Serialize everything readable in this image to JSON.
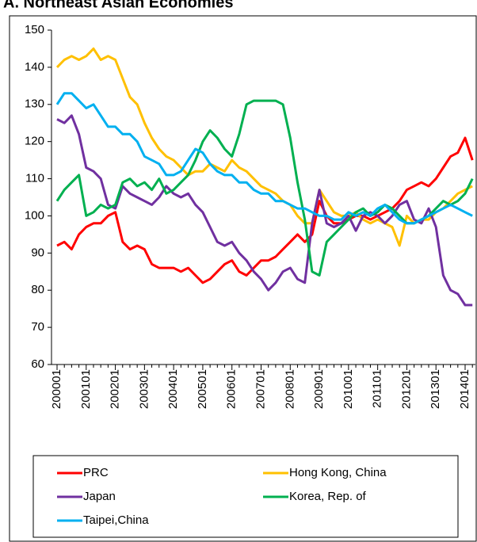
{
  "chart_data": {
    "type": "line",
    "title": "A. Northeast Asian Economies",
    "categories": [
      "200001",
      null,
      null,
      null,
      "200101",
      null,
      null,
      null,
      "200201",
      null,
      null,
      null,
      "200301",
      null,
      null,
      null,
      "200401",
      null,
      null,
      null,
      "200501",
      null,
      null,
      null,
      "200601",
      null,
      null,
      null,
      "200701",
      null,
      null,
      null,
      "200801",
      null,
      null,
      null,
      "200901",
      null,
      null,
      null,
      "201001",
      null,
      null,
      null,
      "201101",
      null,
      null,
      null,
      "201201",
      null,
      null,
      null,
      "201301",
      null,
      null,
      null,
      "201401",
      null
    ],
    "series": [
      {
        "name": "PRC",
        "color": "#ff0000",
        "values": [
          92,
          93,
          91,
          95,
          97,
          98,
          98,
          100,
          101,
          93,
          91,
          92,
          91,
          87,
          86,
          86,
          86,
          85,
          86,
          84,
          82,
          83,
          85,
          87,
          88,
          85,
          84,
          86,
          88,
          88,
          89,
          91,
          93,
          95,
          93,
          95,
          104,
          100,
          98,
          98,
          99,
          100,
          100,
          99,
          100,
          101,
          102,
          104,
          107,
          108,
          109,
          108,
          110,
          113,
          116,
          117,
          121,
          115
        ]
      },
      {
        "name": "Hong Kong, China",
        "color": "#ffc000",
        "values": [
          140,
          142,
          143,
          142,
          143,
          145,
          142,
          143,
          142,
          137,
          132,
          130,
          125,
          121,
          118,
          116,
          115,
          113,
          111,
          112,
          112,
          114,
          113,
          112,
          115,
          113,
          112,
          110,
          108,
          107,
          106,
          104,
          103,
          100,
          98,
          98,
          107,
          104,
          101,
          100,
          100,
          101,
          99,
          98,
          99,
          98,
          97,
          92,
          100,
          98,
          99,
          99,
          101,
          102,
          104,
          106,
          107,
          108
        ]
      },
      {
        "name": "Japan",
        "color": "#7030a0",
        "values": [
          126,
          125,
          127,
          122,
          113,
          112,
          110,
          103,
          102,
          108,
          106,
          105,
          104,
          103,
          105,
          108,
          106,
          105,
          106,
          103,
          101,
          97,
          93,
          92,
          93,
          90,
          88,
          85,
          83,
          80,
          82,
          85,
          86,
          83,
          82,
          98,
          107,
          98,
          97,
          98,
          100,
          96,
          100,
          101,
          100,
          98,
          100,
          103,
          104,
          99,
          98,
          102,
          97,
          84,
          80,
          79,
          76,
          76
        ]
      },
      {
        "name": "Korea, Rep. of",
        "color": "#00b050",
        "values": [
          104,
          107,
          109,
          111,
          100,
          101,
          103,
          102,
          103,
          109,
          110,
          108,
          109,
          107,
          110,
          106,
          107,
          109,
          111,
          115,
          120,
          123,
          121,
          118,
          116,
          122,
          130,
          131,
          131,
          131,
          131,
          130,
          121,
          109,
          99,
          85,
          84,
          93,
          95,
          97,
          99,
          101,
          102,
          100,
          101,
          103,
          102,
          100,
          98,
          98,
          99,
          100,
          102,
          104,
          103,
          104,
          106,
          110
        ]
      },
      {
        "name": "Taipei,China",
        "color": "#00b0f0",
        "values": [
          130,
          133,
          133,
          131,
          129,
          130,
          127,
          124,
          124,
          122,
          122,
          120,
          116,
          115,
          114,
          111,
          111,
          112,
          115,
          118,
          117,
          114,
          112,
          111,
          111,
          109,
          109,
          107,
          106,
          106,
          104,
          104,
          103,
          102,
          102,
          101,
          100,
          100,
          99,
          99,
          101,
          100,
          101,
          100,
          102,
          103,
          101,
          99,
          98,
          98,
          99,
          100,
          101,
          102,
          103,
          102,
          101,
          100
        ]
      }
    ],
    "ylim": [
      60,
      150
    ],
    "yticks": [
      60,
      70,
      80,
      90,
      100,
      110,
      120,
      130,
      140,
      150
    ],
    "legend": "bottom"
  }
}
